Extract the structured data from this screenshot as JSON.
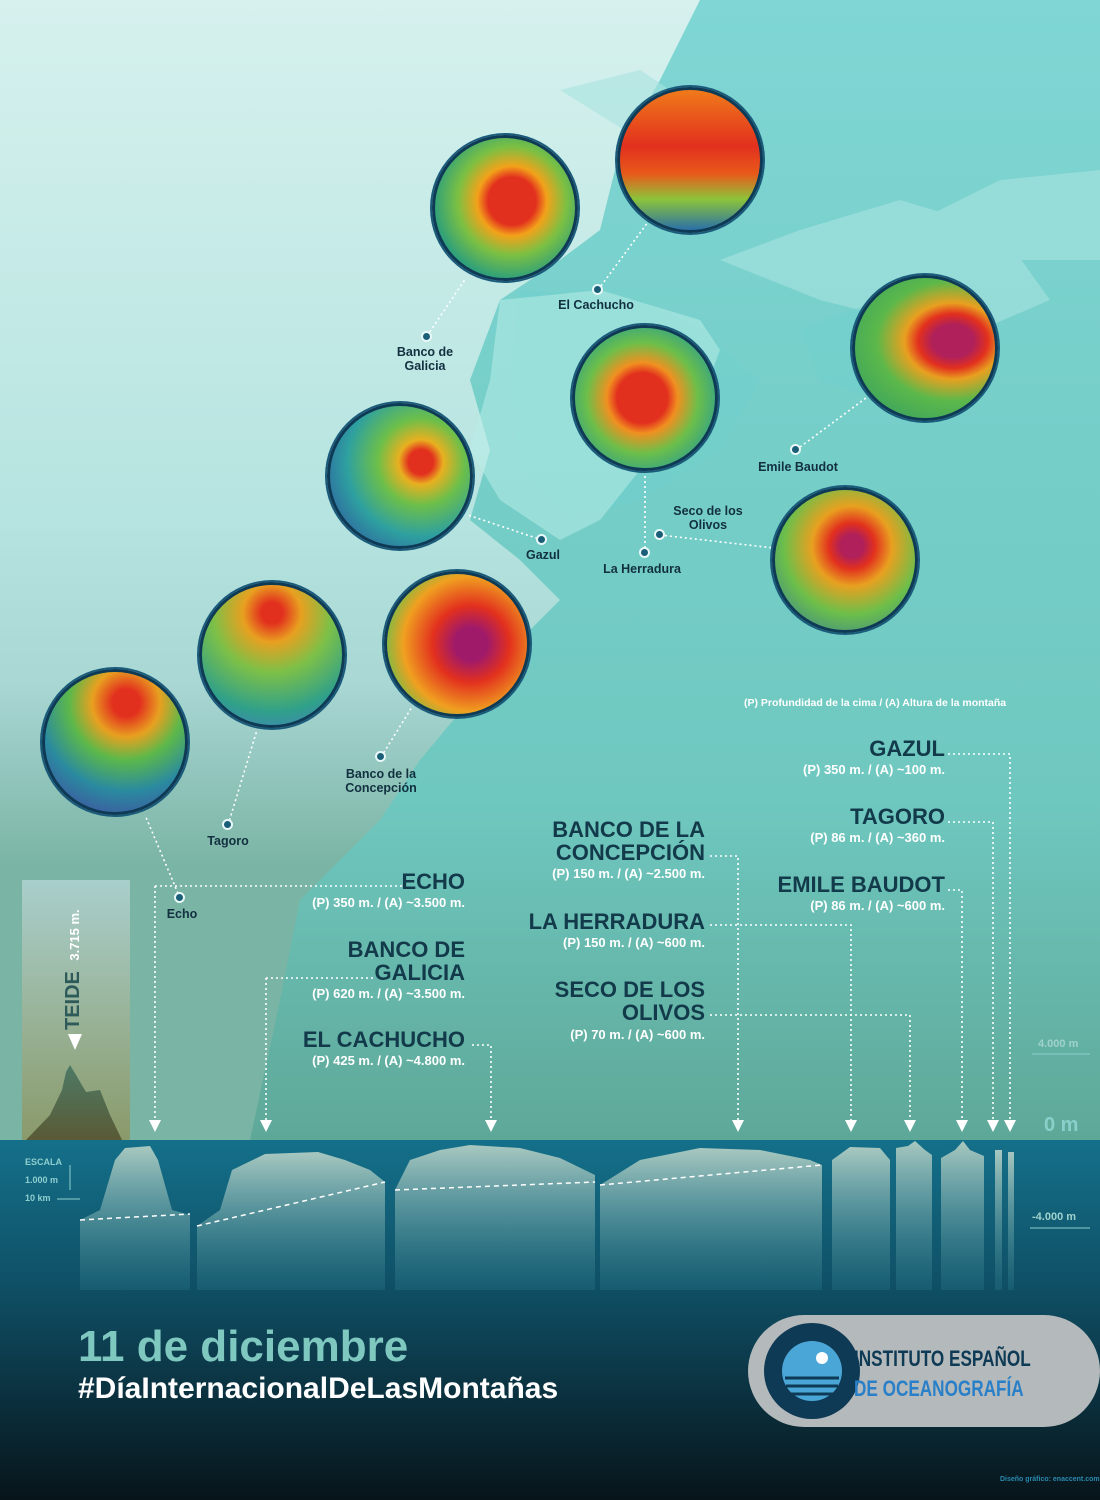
{
  "legend": "(P) Profundidad de la cima / (A) Altura de la montaña",
  "map_labels": {
    "banco_galicia": "Banco de Galicia",
    "el_cachucho": "El Cachucho",
    "emile_baudot": "Emile Baudot",
    "seco_olivos": "Seco de los Olivos",
    "gazul": "Gazul",
    "la_herradura": "La Herradura",
    "banco_concepcion": "Banco de la Concepción",
    "tagoro": "Tagoro",
    "echo": "Echo"
  },
  "entries": {
    "echo": {
      "name": "ECHO",
      "values": "(P) 350 m. / (A) ~3.500 m."
    },
    "banco_galicia": {
      "name": "BANCO DE GALICIA",
      "values": "(P) 620 m. / (A) ~3.500 m."
    },
    "el_cachucho": {
      "name": "EL CACHUCHO",
      "values": "(P) 425 m. / (A) ~4.800 m."
    },
    "banco_concepcion": {
      "name": "BANCO DE LA CONCEPCIÓN",
      "values": "(P) 150 m. / (A) ~2.500 m."
    },
    "la_herradura": {
      "name": "LA HERRADURA",
      "values": "(P) 150 m. / (A) ~600 m."
    },
    "seco_olivos": {
      "name": "SECO DE LOS OLIVOS",
      "values": "(P) 70 m. / (A) ~600 m."
    },
    "gazul": {
      "name": "GAZUL",
      "values": "(P) 350 m. / (A) ~100 m."
    },
    "tagoro": {
      "name": "TAGORO",
      "values": "(P) 86 m. / (A) ~360 m."
    },
    "emile_baudot": {
      "name": "EMILE BAUDOT",
      "values": "(P) 86 m. / (A) ~600 m."
    }
  },
  "teide": {
    "name": "TEIDE",
    "height": "3.715 m."
  },
  "axis": {
    "top": "4.000 m",
    "zero": "0 m",
    "bottom": "-4.000 m"
  },
  "scale": {
    "title": "ESCALA",
    "vertical": "1.000 m",
    "horizontal": "10 km"
  },
  "footer": {
    "date": "11 de diciembre",
    "hashtag": "#DíaInternacionalDeLasMontañas",
    "org_line1": "INSTITUTO ESPAÑOL",
    "org_line2": "DE OCEANOGRAFÍA",
    "credit": "Diseño gráfico: enaccent.com"
  },
  "colors": {
    "sea_light": "#b9e6e2",
    "land": "#7fd6d4",
    "deep": "#136f84",
    "accent": "#0e3a55"
  }
}
